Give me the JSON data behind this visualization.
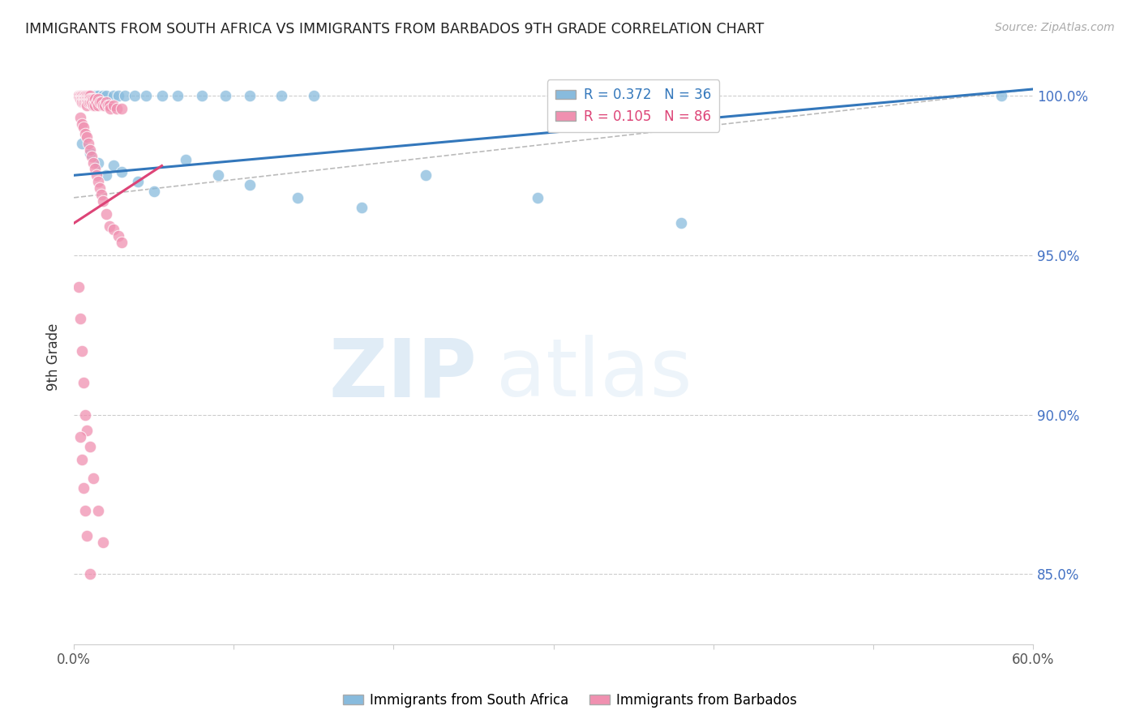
{
  "title": "IMMIGRANTS FROM SOUTH AFRICA VS IMMIGRANTS FROM BARBADOS 9TH GRADE CORRELATION CHART",
  "source": "Source: ZipAtlas.com",
  "ylabel": "9th Grade",
  "x_min": 0.0,
  "x_max": 0.6,
  "y_min": 0.828,
  "y_max": 1.008,
  "x_ticks": [
    0.0,
    0.1,
    0.2,
    0.3,
    0.4,
    0.5,
    0.6
  ],
  "x_tick_labels": [
    "0.0%",
    "",
    "",
    "",
    "",
    "",
    "60.0%"
  ],
  "y_ticks": [
    0.85,
    0.9,
    0.95,
    1.0
  ],
  "y_tick_labels": [
    "85.0%",
    "90.0%",
    "95.0%",
    "100.0%"
  ],
  "blue_R": 0.372,
  "blue_N": 36,
  "pink_R": 0.105,
  "pink_N": 86,
  "blue_color": "#88bbdd",
  "pink_color": "#f090b0",
  "blue_line_color": "#3377bb",
  "pink_line_color": "#dd4477",
  "gray_line_color": "#bbbbbb",
  "legend_label_blue": "Immigrants from South Africa",
  "legend_label_pink": "Immigrants from Barbados",
  "watermark_zip": "ZIP",
  "watermark_atlas": "atlas",
  "blue_scatter_x": [
    0.005,
    0.008,
    0.01,
    0.013,
    0.015,
    0.018,
    0.02,
    0.025,
    0.028,
    0.032,
    0.038,
    0.045,
    0.055,
    0.065,
    0.08,
    0.095,
    0.11,
    0.13,
    0.15,
    0.005,
    0.01,
    0.015,
    0.02,
    0.025,
    0.03,
    0.04,
    0.05,
    0.07,
    0.09,
    0.11,
    0.14,
    0.18,
    0.22,
    0.29,
    0.38,
    0.58
  ],
  "blue_scatter_y": [
    1.0,
    1.0,
    1.0,
    1.0,
    1.0,
    1.0,
    1.0,
    1.0,
    1.0,
    1.0,
    1.0,
    1.0,
    1.0,
    1.0,
    1.0,
    1.0,
    1.0,
    1.0,
    1.0,
    0.985,
    0.982,
    0.979,
    0.975,
    0.978,
    0.976,
    0.973,
    0.97,
    0.98,
    0.975,
    0.972,
    0.968,
    0.965,
    0.975,
    0.968,
    0.96,
    1.0
  ],
  "pink_scatter_x": [
    0.003,
    0.003,
    0.003,
    0.004,
    0.004,
    0.004,
    0.004,
    0.005,
    0.005,
    0.005,
    0.005,
    0.005,
    0.006,
    0.006,
    0.006,
    0.007,
    0.007,
    0.007,
    0.007,
    0.007,
    0.008,
    0.008,
    0.008,
    0.008,
    0.009,
    0.009,
    0.009,
    0.01,
    0.01,
    0.01,
    0.011,
    0.011,
    0.012,
    0.012,
    0.013,
    0.013,
    0.014,
    0.015,
    0.015,
    0.016,
    0.017,
    0.018,
    0.019,
    0.02,
    0.021,
    0.022,
    0.023,
    0.025,
    0.027,
    0.03,
    0.004,
    0.005,
    0.006,
    0.007,
    0.008,
    0.009,
    0.01,
    0.011,
    0.012,
    0.013,
    0.014,
    0.015,
    0.016,
    0.017,
    0.018,
    0.02,
    0.022,
    0.025,
    0.028,
    0.03,
    0.003,
    0.004,
    0.005,
    0.006,
    0.007,
    0.008,
    0.01,
    0.012,
    0.015,
    0.018,
    0.004,
    0.005,
    0.006,
    0.007,
    0.008,
    0.01
  ],
  "pink_scatter_y": [
    1.0,
    1.0,
    1.0,
    1.0,
    1.0,
    1.0,
    0.999,
    1.0,
    1.0,
    0.999,
    0.999,
    0.998,
    1.0,
    0.999,
    0.998,
    1.0,
    1.0,
    0.999,
    0.999,
    0.998,
    1.0,
    0.999,
    0.998,
    0.997,
    1.0,
    0.999,
    0.998,
    1.0,
    0.999,
    0.998,
    0.999,
    0.998,
    0.999,
    0.997,
    0.999,
    0.997,
    0.998,
    0.999,
    0.997,
    0.998,
    0.998,
    0.997,
    0.997,
    0.998,
    0.997,
    0.997,
    0.996,
    0.997,
    0.996,
    0.996,
    0.993,
    0.991,
    0.99,
    0.988,
    0.987,
    0.985,
    0.983,
    0.981,
    0.979,
    0.977,
    0.975,
    0.973,
    0.971,
    0.969,
    0.967,
    0.963,
    0.959,
    0.958,
    0.956,
    0.954,
    0.94,
    0.93,
    0.92,
    0.91,
    0.9,
    0.895,
    0.89,
    0.88,
    0.87,
    0.86,
    0.893,
    0.886,
    0.877,
    0.87,
    0.862,
    0.85
  ]
}
